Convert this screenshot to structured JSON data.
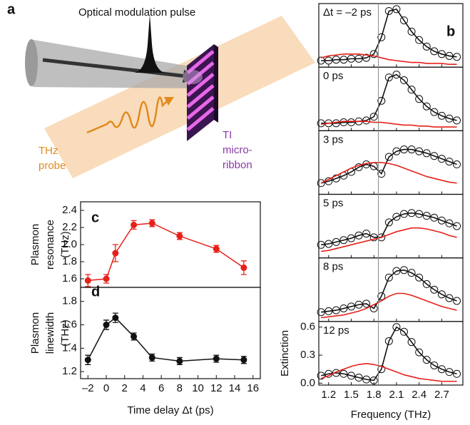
{
  "schematic": {
    "panel_label": "a",
    "pulse_label": "Optical modulation pulse",
    "probe_label": [
      "THz",
      "probe"
    ],
    "ribbon_label": [
      "TI",
      "micro-",
      "ribbon"
    ]
  },
  "chart_data": [
    {
      "type": "line",
      "panel_label": "c",
      "ylabel": [
        "Plasmon",
        "resonance",
        "(THz)"
      ],
      "color": "#e8201a",
      "x": [
        -2,
        0,
        1,
        3,
        5,
        8,
        12,
        15
      ],
      "values": [
        1.58,
        1.6,
        1.9,
        2.23,
        2.25,
        2.1,
        1.95,
        1.73
      ],
      "errors": [
        0.07,
        0.05,
        0.1,
        0.05,
        0.04,
        0.04,
        0.04,
        0.08
      ],
      "xlim": [
        -2.8,
        16.8
      ],
      "ylim": [
        1.5,
        2.5
      ],
      "yticks": [
        1.6,
        1.8,
        {
          "value": 2,
          "label": "2.0"
        },
        2.2,
        2.4
      ]
    },
    {
      "type": "line",
      "panel_label": "d",
      "ylabel": [
        "Plasmon",
        "linewidth",
        "(THz)"
      ],
      "xlabel": "Time delay Δt (ps)",
      "color": "#111111",
      "x": [
        -2,
        0,
        1,
        3,
        5,
        8,
        12,
        15
      ],
      "values": [
        1.3,
        1.6,
        1.66,
        1.5,
        1.32,
        1.29,
        1.31,
        1.3
      ],
      "errors": [
        0.04,
        0.04,
        0.04,
        0.03,
        0.03,
        0.03,
        0.03,
        0.03
      ],
      "xlim": [
        -2.8,
        16.8
      ],
      "ylim": [
        1.14,
        1.92
      ],
      "xticks": [
        {
          "value": -2,
          "label": "–2"
        },
        0,
        2,
        4,
        6,
        8,
        10,
        12,
        14,
        16
      ],
      "yticks": [
        1.2,
        1.4,
        1.6,
        1.8
      ]
    },
    {
      "type": "spectra",
      "panel_label": "b",
      "xlabel": "Frequency (THz)",
      "ylabel": "Extinction",
      "x": [
        1.1,
        1.2,
        1.3,
        1.4,
        1.5,
        1.6,
        1.7,
        1.8,
        1.9,
        2.0,
        2.1,
        2.2,
        2.3,
        2.4,
        2.5,
        2.6,
        2.7,
        2.8,
        2.9
      ],
      "xlim": [
        1.07,
        2.98
      ],
      "ylim": [
        -0.02,
        0.66
      ],
      "xticks": [
        1.2,
        1.5,
        1.8,
        2.1,
        2.4,
        2.7
      ],
      "yticks": [
        {
          "value": 0,
          "label": "0.0"
        },
        0.3,
        0.6
      ],
      "reference_x": 1.86,
      "panels": [
        {
          "label": "Δt = –2 ps",
          "series": [
            {
              "style": "circle",
              "color": "#111111",
              "values": [
                0.05,
                0.05,
                0.06,
                0.06,
                0.07,
                0.07,
                0.08,
                0.12,
                0.3,
                0.58,
                0.6,
                0.48,
                0.36,
                0.27,
                0.2,
                0.15,
                0.12,
                0.1,
                0.09
              ]
            },
            {
              "style": "line",
              "color": "#111111",
              "values": [
                0.05,
                0.05,
                0.06,
                0.06,
                0.07,
                0.07,
                0.08,
                0.12,
                0.3,
                0.58,
                0.6,
                0.48,
                0.36,
                0.27,
                0.2,
                0.15,
                0.12,
                0.1,
                0.09
              ]
            },
            {
              "style": "line",
              "color": "#e8201a",
              "values": [
                0.08,
                0.1,
                0.11,
                0.12,
                0.12,
                0.12,
                0.11,
                0.1,
                0.08,
                0.06,
                0.05,
                0.04,
                0.03,
                0.03,
                0.02,
                0.02,
                0.02,
                0.01,
                0.01
              ]
            }
          ]
        },
        {
          "label": "0 ps",
          "series": [
            {
              "style": "circle",
              "color": "#111111",
              "values": [
                0.06,
                0.06,
                0.06,
                0.07,
                0.07,
                0.08,
                0.09,
                0.13,
                0.3,
                0.55,
                0.58,
                0.52,
                0.42,
                0.32,
                0.24,
                0.18,
                0.14,
                0.11,
                0.09
              ]
            },
            {
              "style": "line",
              "color": "#111111",
              "values": [
                0.06,
                0.06,
                0.06,
                0.07,
                0.07,
                0.08,
                0.09,
                0.13,
                0.3,
                0.55,
                0.58,
                0.52,
                0.42,
                0.32,
                0.24,
                0.18,
                0.14,
                0.11,
                0.09
              ]
            },
            {
              "style": "line",
              "color": "#e8201a",
              "values": [
                0.05,
                0.06,
                0.07,
                0.08,
                0.08,
                0.08,
                0.08,
                0.07,
                0.07,
                0.06,
                0.05,
                0.04,
                0.04,
                0.03,
                0.03,
                0.02,
                0.02,
                0.02,
                0.02
              ]
            }
          ]
        },
        {
          "label": "3 ps",
          "series": [
            {
              "style": "circle",
              "color": "#111111",
              "values": [
                0.1,
                0.12,
                0.15,
                0.18,
                0.22,
                0.27,
                0.3,
                0.28,
                0.2,
                0.38,
                0.44,
                0.46,
                0.46,
                0.44,
                0.42,
                0.39,
                0.36,
                0.33,
                0.3
              ]
            },
            {
              "style": "line",
              "color": "#111111",
              "values": [
                0.1,
                0.12,
                0.15,
                0.18,
                0.22,
                0.27,
                0.3,
                0.28,
                0.2,
                0.38,
                0.44,
                0.46,
                0.46,
                0.44,
                0.42,
                0.39,
                0.36,
                0.33,
                0.3
              ]
            },
            {
              "style": "line",
              "color": "#e8201a",
              "values": [
                0.1,
                0.14,
                0.18,
                0.22,
                0.26,
                0.29,
                0.31,
                0.32,
                0.32,
                0.31,
                0.29,
                0.26,
                0.23,
                0.2,
                0.17,
                0.15,
                0.13,
                0.11,
                0.1
              ]
            }
          ]
        },
        {
          "label": "5 ps",
          "series": [
            {
              "style": "circle",
              "color": "#111111",
              "values": [
                0.12,
                0.13,
                0.15,
                0.17,
                0.19,
                0.22,
                0.24,
                0.2,
                0.2,
                0.36,
                0.42,
                0.45,
                0.46,
                0.45,
                0.43,
                0.41,
                0.38,
                0.35,
                0.32
              ]
            },
            {
              "style": "line",
              "color": "#111111",
              "values": [
                0.12,
                0.13,
                0.15,
                0.17,
                0.19,
                0.22,
                0.24,
                0.2,
                0.2,
                0.36,
                0.42,
                0.45,
                0.46,
                0.45,
                0.43,
                0.41,
                0.38,
                0.35,
                0.32
              ]
            },
            {
              "style": "line",
              "color": "#e8201a",
              "values": [
                0.05,
                0.06,
                0.08,
                0.1,
                0.12,
                0.14,
                0.16,
                0.18,
                0.2,
                0.23,
                0.26,
                0.28,
                0.3,
                0.3,
                0.29,
                0.27,
                0.25,
                0.22,
                0.2
              ]
            }
          ]
        },
        {
          "label": "8 ps",
          "series": [
            {
              "style": "circle",
              "color": "#111111",
              "values": [
                0.08,
                0.09,
                0.1,
                0.12,
                0.14,
                0.16,
                0.17,
                0.12,
                0.25,
                0.45,
                0.52,
                0.53,
                0.5,
                0.45,
                0.38,
                0.32,
                0.27,
                0.23,
                0.2
              ]
            },
            {
              "style": "line",
              "color": "#111111",
              "values": [
                0.08,
                0.09,
                0.1,
                0.12,
                0.14,
                0.16,
                0.17,
                0.12,
                0.25,
                0.45,
                0.52,
                0.53,
                0.5,
                0.45,
                0.38,
                0.32,
                0.27,
                0.23,
                0.2
              ]
            },
            {
              "style": "line",
              "color": "#e8201a",
              "values": [
                0.02,
                0.03,
                0.04,
                0.05,
                0.07,
                0.09,
                0.12,
                0.16,
                0.2,
                0.25,
                0.28,
                0.28,
                0.26,
                0.23,
                0.2,
                0.17,
                0.14,
                0.12,
                0.1
              ]
            }
          ]
        },
        {
          "label": "12 ps",
          "series": [
            {
              "style": "circle",
              "color": "#111111",
              "values": [
                0.08,
                0.1,
                0.11,
                0.1,
                0.08,
                0.06,
                0.04,
                0.03,
                0.15,
                0.45,
                0.6,
                0.55,
                0.44,
                0.33,
                0.25,
                0.19,
                0.15,
                0.12,
                0.1
              ]
            },
            {
              "style": "line",
              "color": "#111111",
              "values": [
                0.08,
                0.1,
                0.11,
                0.1,
                0.08,
                0.06,
                0.04,
                0.03,
                0.15,
                0.45,
                0.6,
                0.55,
                0.44,
                0.33,
                0.25,
                0.19,
                0.15,
                0.12,
                0.1
              ]
            },
            {
              "style": "line",
              "color": "#e8201a",
              "values": [
                0.05,
                0.08,
                0.12,
                0.15,
                0.18,
                0.2,
                0.21,
                0.2,
                0.18,
                0.15,
                0.12,
                0.09,
                0.07,
                0.05,
                0.04,
                0.03,
                0.02,
                0.02,
                0.02
              ]
            }
          ]
        }
      ]
    }
  ]
}
